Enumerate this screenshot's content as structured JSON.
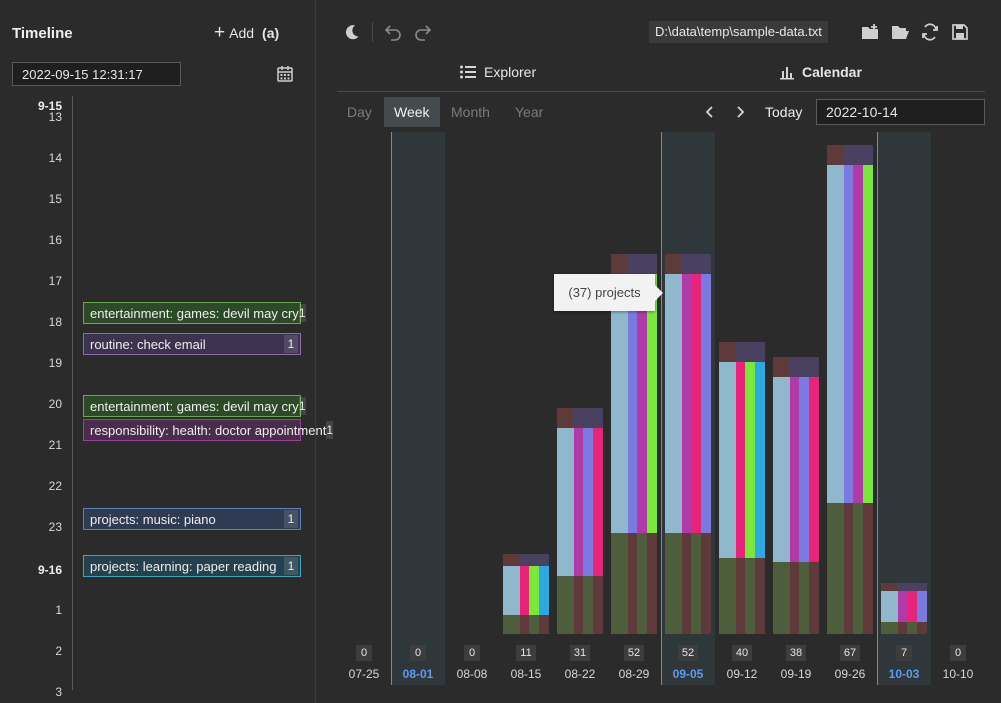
{
  "sidebar": {
    "title": "Timeline",
    "add_label": "Add",
    "add_shortcut": "(a)",
    "date_value": "2022-09-15 12:31:17",
    "hours": [
      {
        "label": "9-15",
        "day": true
      },
      {
        "label": "13",
        "day": false
      },
      {
        "label": "14",
        "day": false
      },
      {
        "label": "15",
        "day": false
      },
      {
        "label": "16",
        "day": false
      },
      {
        "label": "17",
        "day": false
      },
      {
        "label": "18",
        "day": false
      },
      {
        "label": "19",
        "day": false
      },
      {
        "label": "20",
        "day": false
      },
      {
        "label": "21",
        "day": false
      },
      {
        "label": "22",
        "day": false
      },
      {
        "label": "23",
        "day": false
      },
      {
        "label": "9-16",
        "day": true
      },
      {
        "label": "1",
        "day": false
      },
      {
        "label": "2",
        "day": false
      },
      {
        "label": "3",
        "day": false
      }
    ],
    "events": [
      {
        "text": "entertainment: games: devil may cry",
        "count": "1",
        "border": "#6aa84f",
        "bg": "#2d4a28"
      },
      {
        "text": "routine: check email",
        "count": "1",
        "border": "#8e6aa8",
        "bg": "#3d3250"
      },
      {
        "text": "entertainment: games: devil may cry",
        "count": "1",
        "border": "#6aa84f",
        "bg": "#2d4a28"
      },
      {
        "text": "responsibility: health: doctor appointment",
        "count": "1",
        "border": "#a23ea0",
        "bg": "#4a2d4c"
      },
      {
        "text": "projects: music: piano",
        "count": "1",
        "border": "#5e7fb8",
        "bg": "#2f3b52"
      },
      {
        "text": "projects: learning: paper reading",
        "count": "1",
        "border": "#3aa7c2",
        "bg": "#25414d"
      }
    ]
  },
  "toolbar": {
    "theme_icon": "moon-icon",
    "file_path": "D:\\data\\temp\\sample-data.txt"
  },
  "views": {
    "explorer_label": "Explorer",
    "calendar_label": "Calendar",
    "active": "calendar"
  },
  "range": {
    "tabs": [
      "Day",
      "Week",
      "Month",
      "Year"
    ],
    "active": "Week",
    "today_label": "Today",
    "current_date": "2022-10-14"
  },
  "tooltip": {
    "text": "(37) projects"
  },
  "chart_data": {
    "type": "bar",
    "stacked": true,
    "categories": [
      "07-25",
      "08-01",
      "08-08",
      "08-15",
      "08-22",
      "08-29",
      "09-05",
      "09-12",
      "09-19",
      "09-26",
      "10-03",
      "10-10"
    ],
    "values": [
      0,
      0,
      0,
      11,
      31,
      52,
      52,
      40,
      38,
      67,
      7,
      0
    ],
    "highlighted_weeks": [
      "08-01",
      "09-05",
      "10-03"
    ],
    "category_colors": {
      "projects": "#8fb8cc",
      "responsibility": "#b13aa8",
      "health": "#e8237a",
      "learning": "#7a7ae0",
      "music": "#2ea8e0",
      "games": "#7ae83a",
      "entertainment": "#4e5e3c",
      "routine": "#5e3a3a",
      "reading": "#d8a86a",
      "misc": "#4a4060"
    }
  }
}
